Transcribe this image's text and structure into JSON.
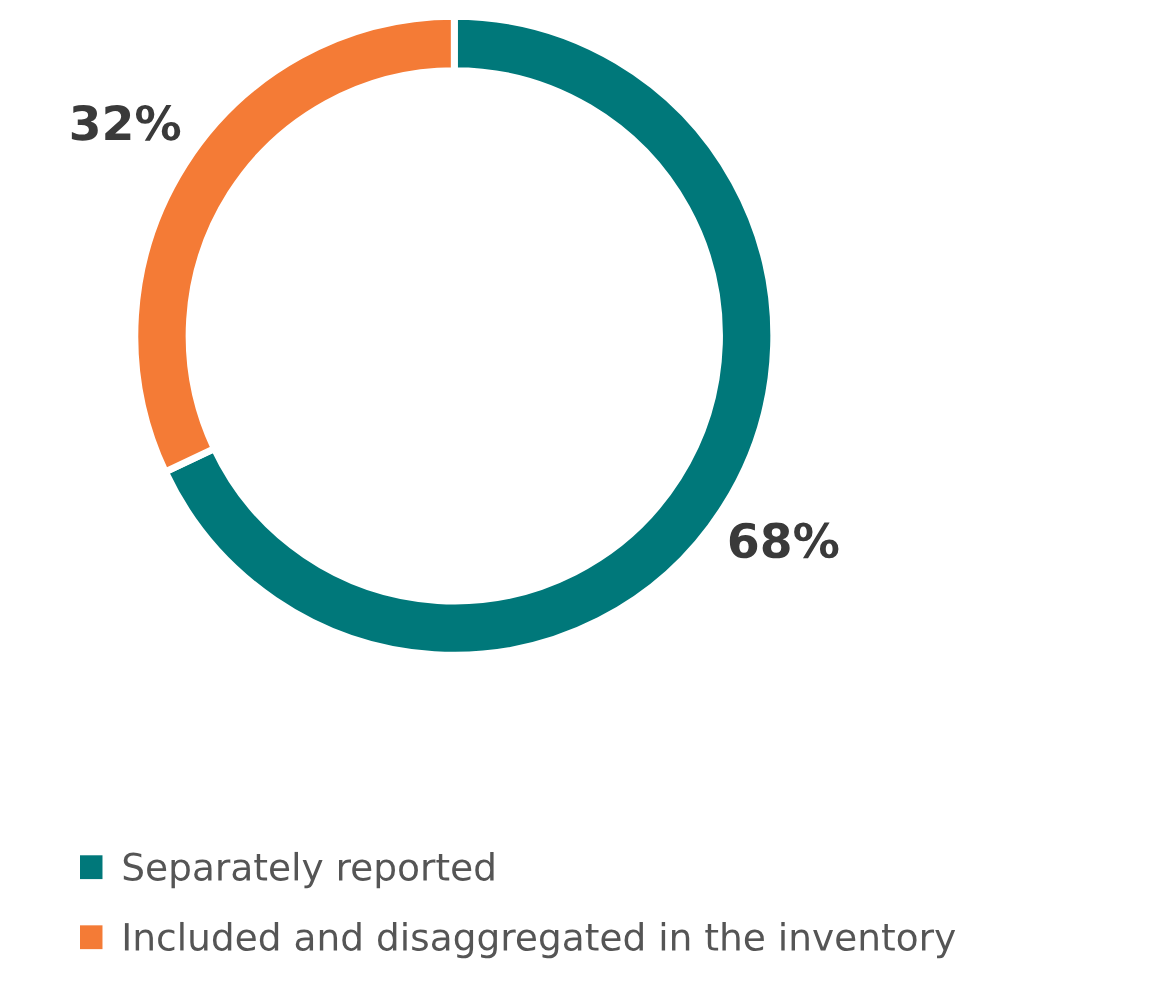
{
  "chart_data": {
    "type": "donut",
    "categories": [
      "Separately reported",
      "Included and disaggregated in the inventory"
    ],
    "values": [
      68,
      32
    ],
    "colors": [
      "#00787a",
      "#f47b36"
    ],
    "value_labels": [
      "68%",
      "32%"
    ],
    "legend": "bottom"
  }
}
